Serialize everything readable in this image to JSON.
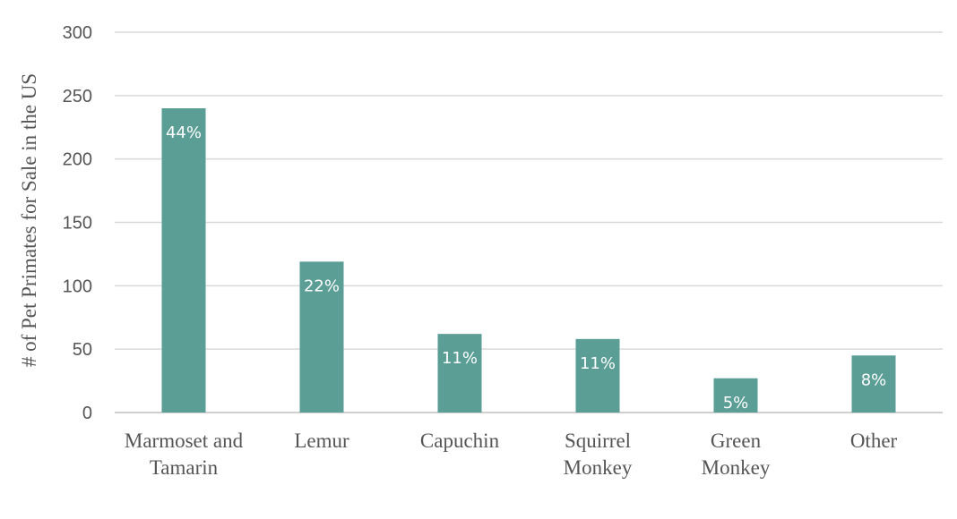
{
  "chart_data": {
    "type": "bar",
    "title": "",
    "xlabel": "",
    "ylabel": "# of Pet Primates for Sale in the US",
    "ylim": [
      0,
      300
    ],
    "yticks": [
      0,
      50,
      100,
      150,
      200,
      250,
      300
    ],
    "grid": true,
    "legend": "none",
    "categories": [
      [
        "Marmoset and",
        "Tamarin"
      ],
      [
        "Lemur"
      ],
      [
        "Capuchin"
      ],
      [
        "Squirrel",
        "Monkey"
      ],
      [
        "Green",
        "Monkey"
      ],
      [
        "Other"
      ]
    ],
    "values": [
      240,
      119,
      62,
      58,
      27,
      45
    ],
    "data_labels": [
      "44%",
      "22%",
      "11%",
      "11%",
      "5%",
      "8%"
    ],
    "bar_color": "#5a9e95"
  }
}
